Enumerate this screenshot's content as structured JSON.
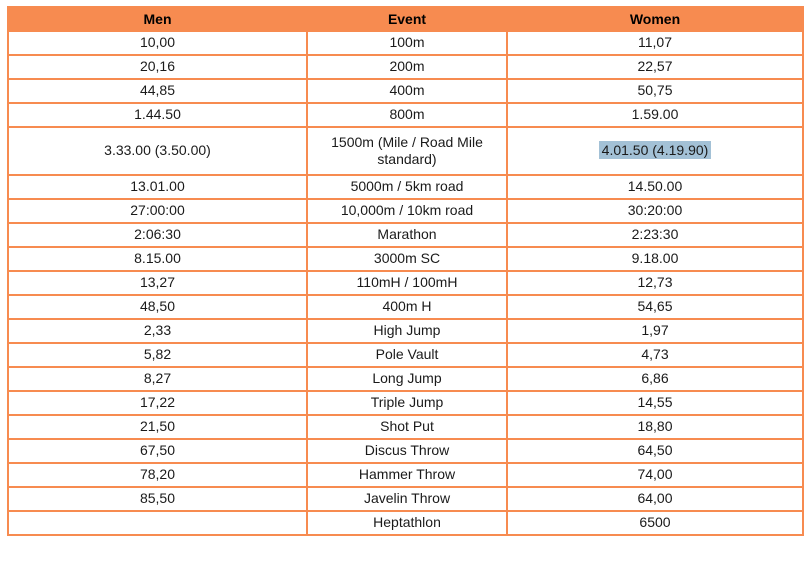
{
  "accent_color": "#f78b50",
  "highlight_color": "#a3c1d6",
  "table": {
    "columns": [
      "Men",
      "Event",
      "Women"
    ],
    "rows": [
      {
        "men": "10,00",
        "event": "100m",
        "women": "11,07"
      },
      {
        "men": "20,16",
        "event": "200m",
        "women": "22,57"
      },
      {
        "men": "44,85",
        "event": "400m",
        "women": "50,75"
      },
      {
        "men": "1.44.50",
        "event": "800m",
        "women": "1.59.00"
      },
      {
        "men": "3.33.00 (3.50.00)",
        "event": "1500m (Mile / Road Mile standard)",
        "women": "4.01.50 (4.19.90)",
        "tall": true,
        "women_highlighted": true
      },
      {
        "men": "13.01.00",
        "event": "5000m / 5km road",
        "women": "14.50.00"
      },
      {
        "men": "27:00:00",
        "event": "10,000m / 10km road",
        "women": "30:20:00"
      },
      {
        "men": "2:06:30",
        "event": "Marathon",
        "women": "2:23:30"
      },
      {
        "men": "8.15.00",
        "event": "3000m SC",
        "women": "9.18.00"
      },
      {
        "men": "13,27",
        "event": "110mH / 100mH",
        "women": "12,73"
      },
      {
        "men": "48,50",
        "event": "400m H",
        "women": "54,65"
      },
      {
        "men": "2,33",
        "event": "High Jump",
        "women": "1,97"
      },
      {
        "men": "5,82",
        "event": "Pole Vault",
        "women": "4,73"
      },
      {
        "men": "8,27",
        "event": "Long Jump",
        "women": "6,86"
      },
      {
        "men": "17,22",
        "event": "Triple Jump",
        "women": "14,55"
      },
      {
        "men": "21,50",
        "event": "Shot Put",
        "women": "18,80"
      },
      {
        "men": "67,50",
        "event": "Discus Throw",
        "women": "64,50"
      },
      {
        "men": "78,20",
        "event": "Hammer Throw",
        "women": "74,00"
      },
      {
        "men": "85,50",
        "event": "Javelin Throw",
        "women": "64,00"
      },
      {
        "men": "",
        "event": "Heptathlon",
        "women": "6500"
      }
    ],
    "highlighted_cell": {
      "row_event": "1500m (Mile / Road Mile standard)",
      "column": "Women",
      "value": "4.01.50 (4.19.90)"
    }
  }
}
